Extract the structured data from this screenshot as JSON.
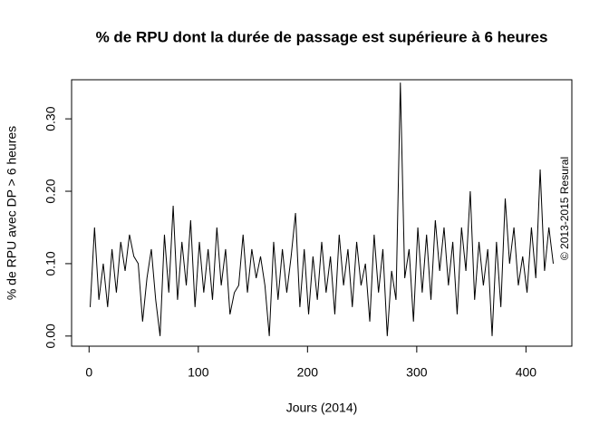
{
  "chart_data": {
    "type": "line",
    "title": "% de RPU dont la durée de passage est supérieure à 6 heures",
    "x_label": "Jours (2014)",
    "y_label": "% de RPU avec DP > 6 heures",
    "annotation": "© 2013-2015 Resural",
    "x": [
      1,
      5,
      9,
      13,
      17,
      21,
      25,
      29,
      33,
      37,
      41,
      45,
      49,
      53,
      57,
      61,
      65,
      69,
      73,
      77,
      81,
      85,
      89,
      93,
      97,
      101,
      105,
      109,
      113,
      117,
      121,
      125,
      129,
      133,
      137,
      141,
      145,
      149,
      153,
      157,
      161,
      165,
      169,
      173,
      177,
      181,
      185,
      189,
      193,
      197,
      201,
      205,
      209,
      213,
      217,
      221,
      225,
      229,
      233,
      237,
      241,
      245,
      249,
      253,
      257,
      261,
      265,
      269,
      273,
      277,
      281,
      285,
      289,
      293,
      297,
      301,
      305,
      309,
      313,
      317,
      321,
      325,
      329,
      333,
      337,
      341,
      345,
      349,
      353,
      357,
      361,
      365,
      369,
      373,
      377,
      381,
      385,
      389,
      393,
      397,
      401,
      405,
      409,
      413,
      417,
      421,
      425
    ],
    "values": [
      0.04,
      0.15,
      0.05,
      0.1,
      0.04,
      0.12,
      0.06,
      0.13,
      0.09,
      0.14,
      0.11,
      0.1,
      0.02,
      0.08,
      0.12,
      0.05,
      0.0,
      0.14,
      0.06,
      0.18,
      0.05,
      0.13,
      0.07,
      0.16,
      0.04,
      0.13,
      0.06,
      0.12,
      0.05,
      0.15,
      0.07,
      0.12,
      0.03,
      0.06,
      0.07,
      0.14,
      0.06,
      0.12,
      0.08,
      0.11,
      0.07,
      0.0,
      0.13,
      0.05,
      0.12,
      0.06,
      0.11,
      0.17,
      0.04,
      0.12,
      0.03,
      0.11,
      0.05,
      0.13,
      0.06,
      0.11,
      0.03,
      0.14,
      0.07,
      0.12,
      0.04,
      0.13,
      0.07,
      0.1,
      0.02,
      0.14,
      0.06,
      0.12,
      0.0,
      0.09,
      0.05,
      0.35,
      0.08,
      0.12,
      0.02,
      0.15,
      0.06,
      0.14,
      0.05,
      0.16,
      0.09,
      0.15,
      0.07,
      0.13,
      0.03,
      0.15,
      0.09,
      0.2,
      0.05,
      0.13,
      0.07,
      0.12,
      0.0,
      0.13,
      0.04,
      0.19,
      0.1,
      0.15,
      0.07,
      0.11,
      0.06,
      0.15,
      0.08,
      0.23,
      0.09,
      0.15,
      0.1
    ],
    "color": "#000000",
    "xlim": [
      -16,
      442
    ],
    "ylim": [
      -0.014,
      0.354
    ],
    "xticks": [
      0,
      100,
      200,
      300,
      400
    ],
    "yticks": [
      {
        "value": 0,
        "label": "0.00"
      },
      {
        "value": 0.1,
        "label": "0.10"
      },
      {
        "value": 0.2,
        "label": "0.20"
      },
      {
        "value": 0.3,
        "label": "0.30"
      }
    ]
  }
}
